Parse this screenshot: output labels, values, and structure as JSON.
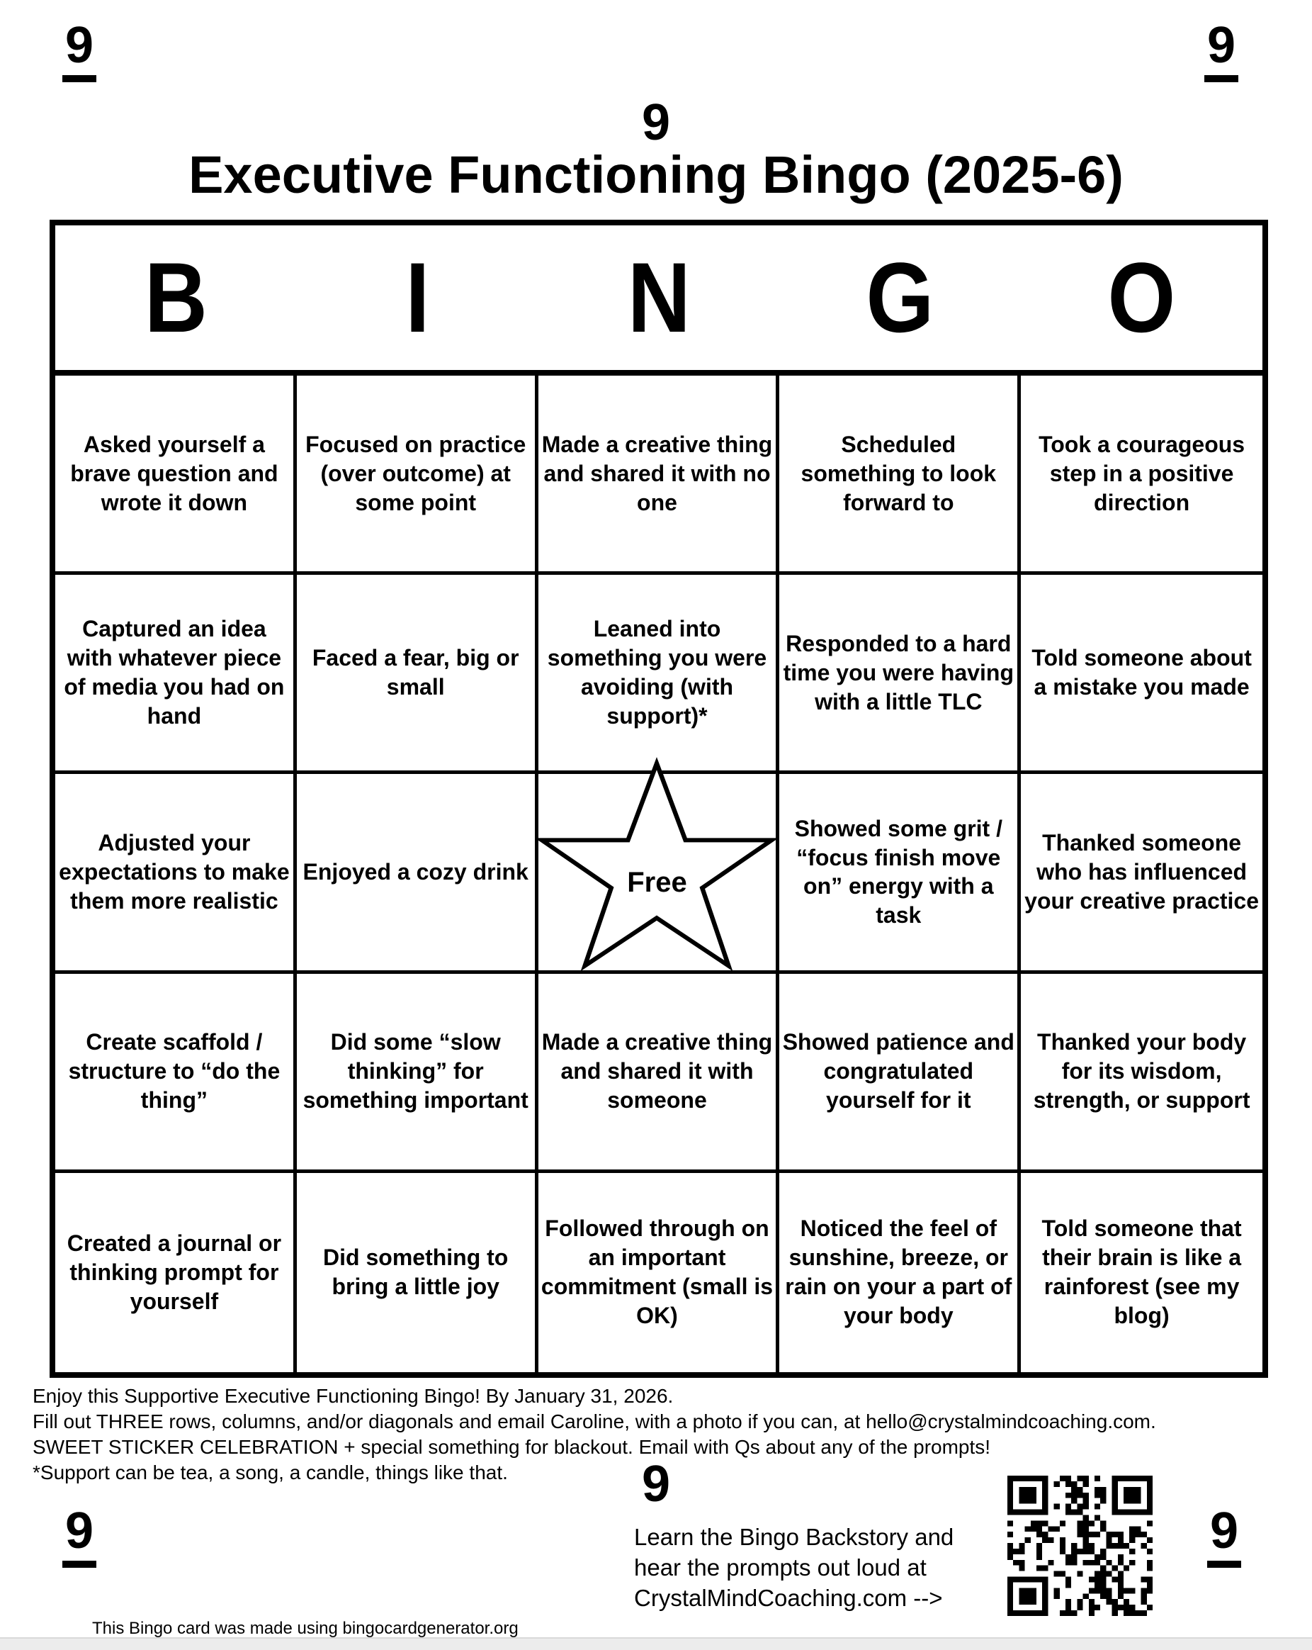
{
  "page": {
    "marks": {
      "top_left": "9",
      "top_center": "9",
      "top_right": "9",
      "bottom_left": "9",
      "bottom_center": "9",
      "bottom_right": "9"
    },
    "title": "Executive Functioning Bingo (2025-6)"
  },
  "bingo": {
    "letters": [
      "B",
      "I",
      "N",
      "G",
      "O"
    ],
    "free_label": "Free",
    "rows": [
      [
        "Asked yourself a brave question and wrote it down",
        "Focused on practice (over outcome) at some point",
        "Made a creative thing and shared it with no one",
        "Scheduled something to look forward to",
        "Took a courageous step in a positive direction"
      ],
      [
        "Captured an idea with whatever piece of media you had on hand",
        "Faced a fear, big or small",
        "Leaned into something you were avoiding (with support)*",
        "Responded to a hard time you were having with a little TLC",
        "Told someone about a mistake you made"
      ],
      [
        "Adjusted your expectations to make them more realistic",
        "Enjoyed a cozy drink",
        "",
        "Showed some grit / “focus finish move on” energy with a task",
        "Thanked someone who has influenced your creative practice"
      ],
      [
        "Create scaffold / structure to “do the thing”",
        "Did some “slow thinking” for something important",
        "Made a creative thing and shared it with someone",
        "Showed patience and congratulated yourself for it",
        "Thanked your body for its wisdom, strength, or support"
      ],
      [
        "Created a journal or thinking prompt for yourself",
        "Did something to bring a little joy",
        "Followed through on an important commitment (small is OK)",
        "Noticed the feel of sunshine, breeze, or rain on your a part of your body",
        "Told someone that their brain is like a rainforest (see my blog)"
      ]
    ]
  },
  "footer": {
    "instructions": [
      "Enjoy this Supportive Executive Functioning Bingo! By January 31, 2026.",
      "Fill out THREE rows, columns, and/or diagonals and email Caroline, with a photo if you can, at hello@crystalmindcoaching.com.",
      "SWEET STICKER CELEBRATION + special something for blackout. Email with Qs about any of the prompts!",
      "*Support can be tea, a song, a candle, things like that."
    ],
    "backstory": [
      "Learn the Bingo Backstory and",
      "hear the prompts out loud at",
      "CrystalMindCoaching.com -->"
    ],
    "credit": "This Bingo card was made using bingocardgenerator.org"
  }
}
